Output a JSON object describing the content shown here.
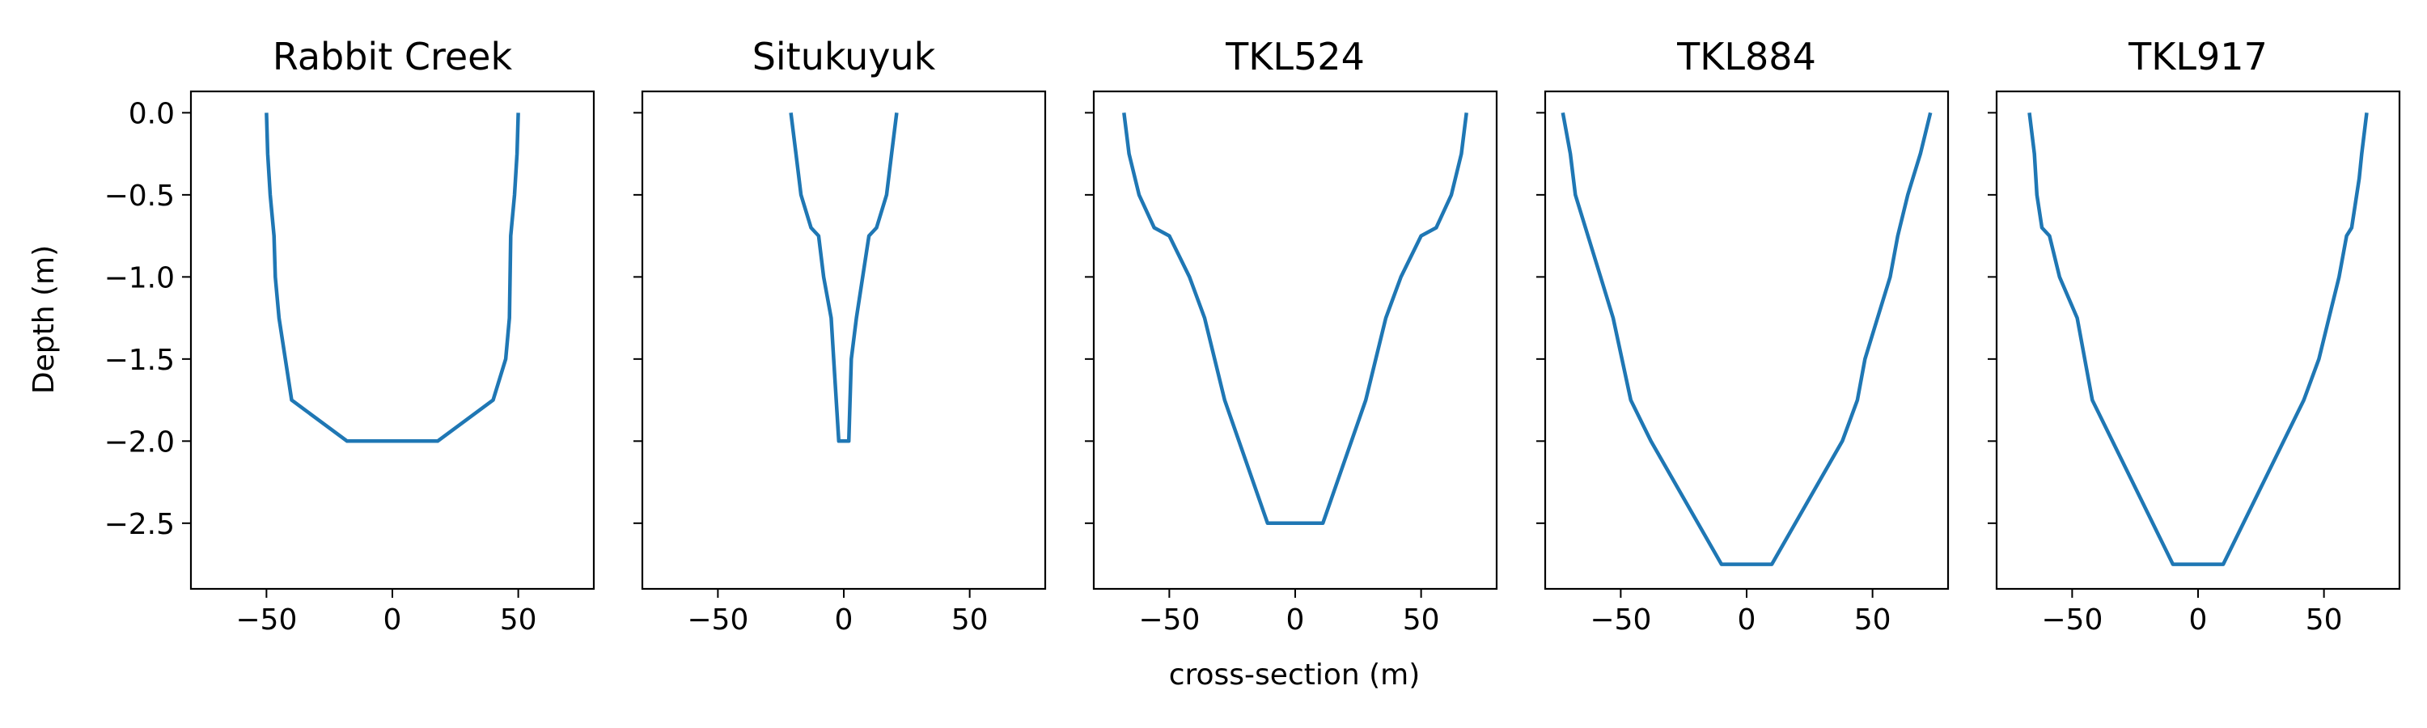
{
  "figure": {
    "xlabel": "cross-section (m)",
    "ylabel": "Depth (m)",
    "line_color": "#1f77b4"
  },
  "chart_data": [
    {
      "type": "line",
      "title": "Rabbit Creek",
      "xlim": [
        -80,
        80
      ],
      "ylim": [
        -2.9,
        0.13
      ],
      "xticks": [
        -50,
        0,
        50
      ],
      "yticks": [
        0.0,
        -0.5,
        -1.0,
        -1.5,
        -2.0,
        -2.5
      ],
      "x": [
        -50,
        -49.5,
        -48.5,
        -47,
        -46.5,
        -45,
        -40,
        -18,
        18,
        40,
        45,
        46.5,
        47,
        48.5,
        49.5,
        50
      ],
      "y": [
        0.0,
        -0.25,
        -0.5,
        -0.75,
        -1.0,
        -1.25,
        -1.75,
        -2.0,
        -2.0,
        -1.75,
        -1.5,
        -1.25,
        -0.75,
        -0.5,
        -0.25,
        0.0
      ]
    },
    {
      "type": "line",
      "title": "Situkuyuk",
      "xlim": [
        -80,
        80
      ],
      "ylim": [
        -2.9,
        0.13
      ],
      "xticks": [
        -50,
        0,
        50
      ],
      "yticks": [
        0.0,
        -0.5,
        -1.0,
        -1.5,
        -2.0,
        -2.5
      ],
      "x": [
        -21,
        -19,
        -17,
        -13,
        -10,
        -8,
        -5,
        -4,
        -2,
        2,
        3,
        5,
        10,
        13,
        17,
        19,
        21
      ],
      "y": [
        0.0,
        -0.25,
        -0.5,
        -0.7,
        -0.75,
        -1.0,
        -1.25,
        -1.5,
        -2.0,
        -2.0,
        -1.5,
        -1.25,
        -0.75,
        -0.7,
        -0.5,
        -0.25,
        0.0
      ]
    },
    {
      "type": "line",
      "title": "TKL524",
      "xlim": [
        -80,
        80
      ],
      "ylim": [
        -2.9,
        0.13
      ],
      "xticks": [
        -50,
        0,
        50
      ],
      "yticks": [
        0.0,
        -0.5,
        -1.0,
        -1.5,
        -2.0,
        -2.5
      ],
      "x": [
        -68,
        -66,
        -62,
        -56,
        -50,
        -42,
        -36,
        -32,
        -28,
        -11,
        11,
        28,
        32,
        36,
        42,
        50,
        56,
        62,
        66,
        68
      ],
      "y": [
        0.0,
        -0.25,
        -0.5,
        -0.7,
        -0.75,
        -1.0,
        -1.25,
        -1.5,
        -1.75,
        -2.5,
        -2.5,
        -1.75,
        -1.5,
        -1.25,
        -1.0,
        -0.75,
        -0.7,
        -0.5,
        -0.25,
        0.0
      ]
    },
    {
      "type": "line",
      "title": "TKL884",
      "xlim": [
        -80,
        80
      ],
      "ylim": [
        -2.9,
        0.13
      ],
      "xticks": [
        -50,
        0,
        50
      ],
      "yticks": [
        0.0,
        -0.5,
        -1.0,
        -1.5,
        -2.0,
        -2.5
      ],
      "x": [
        -73,
        -70,
        -68,
        -63,
        -58,
        -53,
        -46,
        -38,
        -10,
        10,
        38,
        44,
        47,
        52,
        57,
        60,
        64,
        66,
        69,
        73
      ],
      "y": [
        0.0,
        -0.25,
        -0.5,
        -0.75,
        -1.0,
        -1.25,
        -1.75,
        -2.0,
        -2.75,
        -2.75,
        -2.0,
        -1.75,
        -1.5,
        -1.25,
        -1.0,
        -0.75,
        -0.5,
        -0.4,
        -0.25,
        0.0
      ]
    },
    {
      "type": "line",
      "title": "TKL917",
      "xlim": [
        -80,
        80
      ],
      "ylim": [
        -2.9,
        0.13
      ],
      "xticks": [
        -50,
        0,
        50
      ],
      "yticks": [
        0.0,
        -0.5,
        -1.0,
        -1.5,
        -2.0,
        -2.5
      ],
      "x": [
        -67,
        -65,
        -64,
        -62,
        -59,
        -55,
        -48,
        -42,
        -10,
        10,
        42,
        48,
        52,
        56,
        59,
        61,
        63,
        64,
        65,
        67
      ],
      "y": [
        0.0,
        -0.25,
        -0.5,
        -0.7,
        -0.75,
        -1.0,
        -1.25,
        -1.75,
        -2.75,
        -2.75,
        -1.75,
        -1.5,
        -1.25,
        -1.0,
        -0.75,
        -0.7,
        -0.5,
        -0.4,
        -0.25,
        0.0
      ]
    }
  ]
}
